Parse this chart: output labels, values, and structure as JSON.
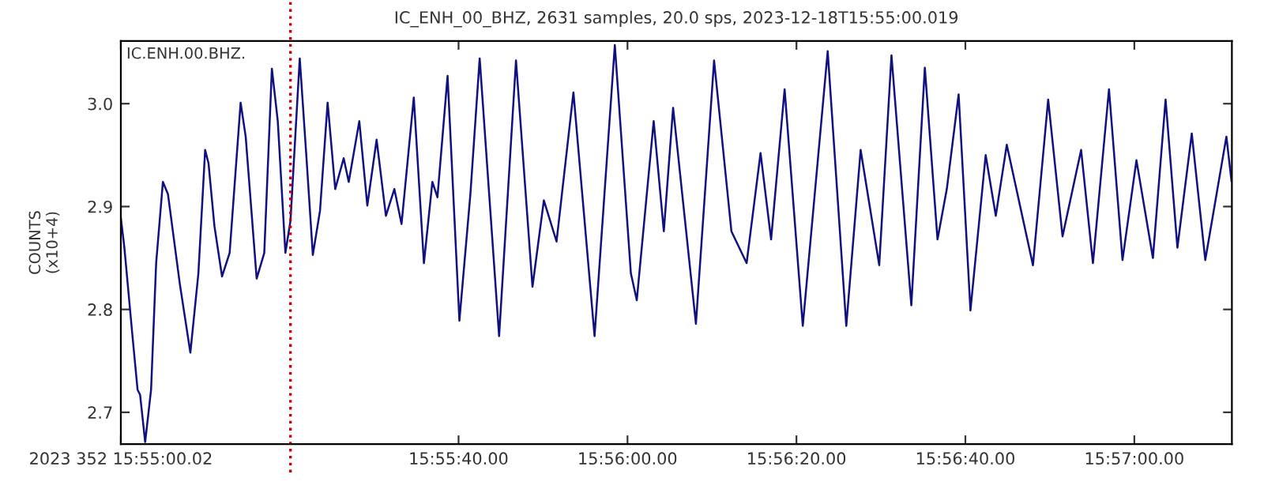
{
  "chart_data": {
    "type": "line",
    "title": "IC_ENH_00_BHZ, 2631 samples, 20.0 sps, 2023-12-18T15:55:00.019",
    "ylabel": "COUNTS\n(x10+4)",
    "annotations": [
      "IC.ENH.00.BHZ."
    ],
    "x": [
      "2023-12-18T15:55:00.020",
      "2023-12-18T15:55:00.440",
      "2023-12-18T15:55:01.400",
      "2023-12-18T15:55:02.000",
      "2023-12-18T15:55:02.300",
      "2023-12-18T15:55:02.900",
      "2023-12-18T15:55:03.600",
      "2023-12-18T15:55:04.200",
      "2023-12-18T15:55:05.000",
      "2023-12-18T15:55:05.600",
      "2023-12-18T15:55:07.000",
      "2023-12-18T15:55:08.250",
      "2023-12-18T15:55:09.200",
      "2023-12-18T15:55:10.000",
      "2023-12-18T15:55:10.400",
      "2023-12-18T15:55:11.100",
      "2023-12-18T15:55:12.000",
      "2023-12-18T15:55:12.900",
      "2023-12-18T15:55:14.200",
      "2023-12-18T15:55:14.800",
      "2023-12-18T15:55:16.100",
      "2023-12-18T15:55:17.000",
      "2023-12-18T15:55:17.900",
      "2023-12-18T15:55:18.600",
      "2023-12-18T15:55:19.500",
      "2023-12-18T15:55:20.100",
      "2023-12-18T15:55:21.200",
      "2023-12-18T15:55:22.000",
      "2023-12-18T15:55:22.750",
      "2023-12-18T15:55:23.600",
      "2023-12-18T15:55:24.500",
      "2023-12-18T15:55:25.400",
      "2023-12-18T15:55:26.400",
      "2023-12-18T15:55:27.000",
      "2023-12-18T15:55:28.250",
      "2023-12-18T15:55:29.200",
      "2023-12-18T15:55:30.300",
      "2023-12-18T15:55:31.400",
      "2023-12-18T15:55:32.400",
      "2023-12-18T15:55:33.250",
      "2023-12-18T15:55:34.700",
      "2023-12-18T15:55:35.900",
      "2023-12-18T15:55:36.900",
      "2023-12-18T15:55:37.500",
      "2023-12-18T15:55:38.700",
      "2023-12-18T15:55:40.100",
      "2023-12-18T15:55:41.400",
      "2023-12-18T15:55:42.500",
      "2023-12-18T15:55:44.800",
      "2023-12-18T15:55:46.800",
      "2023-12-18T15:55:48.750",
      "2023-12-18T15:55:50.100",
      "2023-12-18T15:55:51.600",
      "2023-12-18T15:55:53.600",
      "2023-12-18T15:55:56.100",
      "2023-12-18T15:55:58.500",
      "2023-12-18T15:56:00.400",
      "2023-12-18T15:56:01.100",
      "2023-12-18T15:56:03.100",
      "2023-12-18T15:56:04.300",
      "2023-12-18T15:56:05.400",
      "2023-12-18T15:56:08.100",
      "2023-12-18T15:56:10.250",
      "2023-12-18T15:56:12.300",
      "2023-12-18T15:56:14.100",
      "2023-12-18T15:56:15.750",
      "2023-12-18T15:56:17.000",
      "2023-12-18T15:56:18.600",
      "2023-12-18T15:56:20.750",
      "2023-12-18T15:56:23.700",
      "2023-12-18T15:56:25.900",
      "2023-12-18T15:56:27.600",
      "2023-12-18T15:56:29.800",
      "2023-12-18T15:56:31.250",
      "2023-12-18T15:56:33.600",
      "2023-12-18T15:56:35.200",
      "2023-12-18T15:56:36.700",
      "2023-12-18T15:56:37.800",
      "2023-12-18T15:56:39.200",
      "2023-12-18T15:56:40.600",
      "2023-12-18T15:56:42.400",
      "2023-12-18T15:56:43.600",
      "2023-12-18T15:56:44.900",
      "2023-12-18T15:56:48.000",
      "2023-12-18T15:56:49.800",
      "2023-12-18T15:56:51.500",
      "2023-12-18T15:56:53.700",
      "2023-12-18T15:56:55.100",
      "2023-12-18T15:56:57.000",
      "2023-12-18T15:56:58.600",
      "2023-12-18T15:57:00.250",
      "2023-12-18T15:57:02.200",
      "2023-12-18T15:57:03.700",
      "2023-12-18T15:57:05.100",
      "2023-12-18T15:57:06.800",
      "2023-12-18T15:57:08.400",
      "2023-12-18T15:57:10.900",
      "2023-12-18T15:57:11.500"
    ],
    "series": [
      {
        "color": "#101080",
        "values": [
          2.889,
          2.86,
          2.774,
          2.722,
          2.717,
          2.671,
          2.722,
          2.845,
          2.924,
          2.912,
          2.825,
          2.758,
          2.835,
          2.955,
          2.942,
          2.881,
          2.832,
          2.855,
          3.001,
          2.968,
          2.83,
          2.855,
          3.034,
          2.983,
          2.855,
          2.886,
          3.044,
          2.947,
          2.853,
          2.896,
          3.001,
          2.917,
          2.947,
          2.924,
          2.983,
          2.901,
          2.965,
          2.891,
          2.917,
          2.883,
          3.006,
          2.845,
          2.924,
          2.909,
          3.027,
          2.789,
          2.912,
          3.044,
          2.774,
          3.042,
          2.822,
          2.906,
          2.866,
          3.011,
          2.774,
          3.057,
          2.835,
          2.809,
          2.983,
          2.876,
          2.996,
          2.786,
          3.042,
          2.876,
          2.845,
          2.952,
          2.868,
          3.014,
          2.784,
          3.051,
          2.784,
          2.955,
          2.843,
          3.047,
          2.804,
          3.035,
          2.868,
          2.917,
          3.009,
          2.799,
          2.95,
          2.891,
          2.96,
          2.843,
          3.004,
          2.871,
          2.955,
          2.845,
          3.014,
          2.848,
          2.945,
          2.85,
          3.004,
          2.86,
          2.971,
          2.848,
          2.968,
          2.925
        ]
      }
    ],
    "xlim": [
      "2023-12-18T15:55:00.020",
      "2023-12-18T15:57:11.550"
    ],
    "xticks": [
      {
        "value": "2023-12-18T15:55:00.020",
        "label": "2023 352 15:55:00.02"
      },
      {
        "value": "2023-12-18T15:55:40",
        "label": "15:55:40.00"
      },
      {
        "value": "2023-12-18T15:56:00",
        "label": "15:56:00.00"
      },
      {
        "value": "2023-12-18T15:56:20",
        "label": "15:56:20.00"
      },
      {
        "value": "2023-12-18T15:56:40",
        "label": "15:56:40.00"
      },
      {
        "value": "2023-12-18T15:57:00",
        "label": "15:57:00.00"
      }
    ],
    "ylim": [
      2.669,
      3.061
    ],
    "yticks": [
      {
        "value": 2.7,
        "label": "2.7"
      },
      {
        "value": 2.8,
        "label": "2.8"
      },
      {
        "value": 2.9,
        "label": "2.9"
      },
      {
        "value": 3.0,
        "label": "3.0"
      }
    ],
    "ref_lines": [
      {
        "axis": "x",
        "value": "2023-12-18T15:55:20.100",
        "color": "#cc0000",
        "line_style": "dotted"
      }
    ],
    "grid": false,
    "legend": false,
    "marker": "none",
    "line_style": "solid"
  }
}
